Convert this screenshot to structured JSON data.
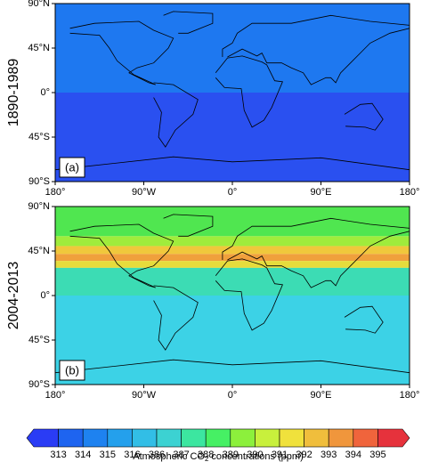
{
  "panels": [
    {
      "period": "1890-1989",
      "label": "(a)"
    },
    {
      "period": "2004-2013",
      "label": "(b)"
    }
  ],
  "lat_ticks": [
    "90°N",
    "45°N",
    "0°",
    "45°S",
    "90°S"
  ],
  "lon_ticks": [
    "180°",
    "90°W",
    "0°",
    "90°E",
    "180°"
  ],
  "colorbar": {
    "title": "Atmospheric CO",
    "title_sub": "2",
    "title_end": "concentrations (ppm)",
    "ticks": [
      313,
      314,
      315,
      316,
      386,
      387,
      388,
      389,
      390,
      391,
      392,
      393,
      394,
      395
    ],
    "colors": [
      "#2a3cf5",
      "#1e64f0",
      "#1e82f0",
      "#24a0ec",
      "#32bee6",
      "#3cd2d2",
      "#3ce6a0",
      "#46f064",
      "#8cf03c",
      "#c8f03c",
      "#f0e13c",
      "#f0be3c",
      "#f0963c",
      "#f0643c",
      "#e6323c"
    ]
  }
}
